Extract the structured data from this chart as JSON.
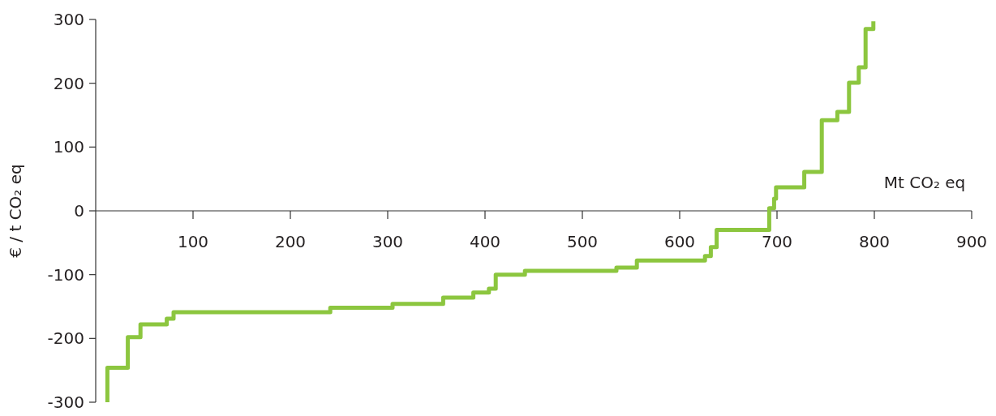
{
  "chart_data": {
    "type": "step",
    "xlabel": "Mt CO₂ eq",
    "ylabel": "€ / t CO₂ eq",
    "xlim": [
      0,
      900
    ],
    "ylim": [
      -300,
      300
    ],
    "xticks": [
      100,
      200,
      300,
      400,
      500,
      600,
      700,
      800,
      900
    ],
    "yticks": [
      -300,
      -200,
      -100,
      0,
      100,
      200,
      300
    ],
    "series": [
      {
        "color": "#8cc63f",
        "x": [
          12,
          12,
          33,
          46,
          73,
          80,
          241,
          305,
          357,
          388,
          404,
          411,
          441,
          535,
          556,
          626,
          632,
          638,
          692,
          697,
          699,
          728,
          746,
          762,
          774,
          784,
          791,
          799
        ],
        "values": [
          -300,
          -246,
          -198,
          -178,
          -169,
          -159,
          -152,
          -146,
          -136,
          -128,
          -122,
          -100,
          -94,
          -89,
          -78,
          -71,
          -57,
          -30,
          4,
          19,
          37,
          61,
          142,
          155,
          201,
          225,
          285,
          297
        ]
      }
    ]
  }
}
